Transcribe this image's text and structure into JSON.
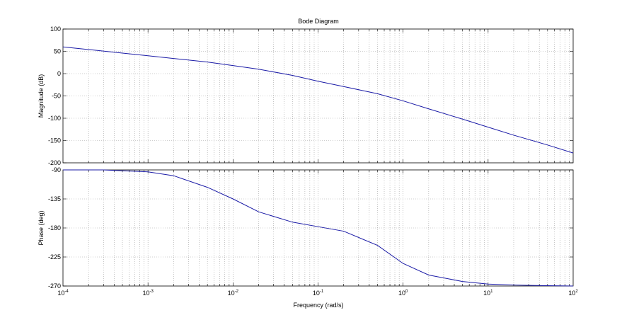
{
  "chart_data": {
    "type": "line",
    "title": "Bode Diagram",
    "xlabel": "Frequency  (rad/s)",
    "xscale": "log",
    "xlim": [
      0.0001,
      100
    ],
    "x_ticks": [
      {
        "value": 0.0001,
        "base": "10",
        "exp": "-4"
      },
      {
        "value": 0.001,
        "base": "10",
        "exp": "-3"
      },
      {
        "value": 0.01,
        "base": "10",
        "exp": "-2"
      },
      {
        "value": 0.1,
        "base": "10",
        "exp": "-1"
      },
      {
        "value": 1,
        "base": "10",
        "exp": "0"
      },
      {
        "value": 10,
        "base": "10",
        "exp": "1"
      },
      {
        "value": 100,
        "base": "10",
        "exp": "2"
      }
    ],
    "grid": true,
    "line_color": "#1a1aa6",
    "panels": [
      {
        "id": "magnitude",
        "ylabel": "Magnitude (dB)",
        "ylim": [
          -200,
          100
        ],
        "yticks": [
          100,
          50,
          0,
          -50,
          -100,
          -150,
          -200
        ],
        "x": [
          0.0001,
          0.0002,
          0.0005,
          0.001,
          0.002,
          0.005,
          0.01,
          0.02,
          0.05,
          0.1,
          0.2,
          0.5,
          1,
          2,
          5,
          10,
          20,
          50,
          100
        ],
        "y": [
          60,
          54,
          46,
          40,
          34,
          26,
          18,
          10,
          -4,
          -17,
          -29,
          -45,
          -61,
          -79,
          -102,
          -120,
          -138,
          -160,
          -178
        ]
      },
      {
        "id": "phase",
        "ylabel": "Phase (deg)",
        "ylim": [
          -270,
          -90
        ],
        "yticks": [
          -90,
          -135,
          -180,
          -225,
          -270
        ],
        "x": [
          0.0001,
          0.0003,
          0.001,
          0.002,
          0.005,
          0.01,
          0.02,
          0.05,
          0.1,
          0.2,
          0.5,
          1,
          2,
          5,
          10,
          20,
          50,
          100
        ],
        "y": [
          -90,
          -90,
          -93,
          -99,
          -117,
          -135,
          -155,
          -171,
          -178,
          -185,
          -207,
          -235,
          -253,
          -263,
          -267,
          -268.5,
          -269.5,
          -270
        ]
      }
    ]
  }
}
